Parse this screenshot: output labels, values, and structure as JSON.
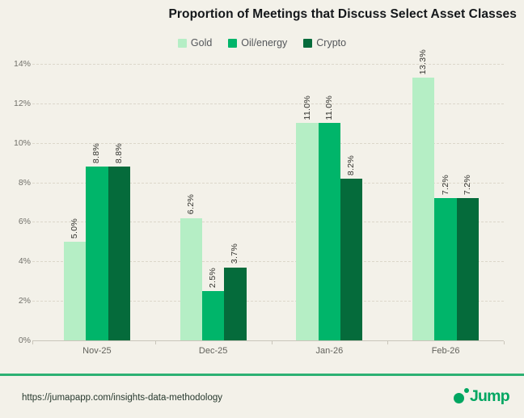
{
  "title": "Proportion of Meetings that Discuss Select Asset Classes",
  "footer": {
    "url": "https://jumapapp.com/insights-data-methodology",
    "brand": "Jump",
    "logo_icon": "dot-and-small-dot-icon"
  },
  "colors": {
    "background": "#f3f1e9",
    "accent_line": "#2cb173",
    "brand_green": "#00a661",
    "gridline": "#dcd7ca",
    "gold": "#b5eec5",
    "oil_energy": "#00b56a",
    "crypto": "#056b3b"
  },
  "chart_data": {
    "type": "bar",
    "title": "Proportion of Meetings that Discuss Select Asset Classes",
    "categories": [
      "Nov-25",
      "Dec-25",
      "Jan-26",
      "Feb-26"
    ],
    "series": [
      {
        "name": "Gold",
        "color": "#b5eec5",
        "values": [
          5.0,
          6.2,
          11.0,
          13.3
        ],
        "labels": [
          "5.0%",
          "6.2%",
          "11.0%",
          "13.3%"
        ]
      },
      {
        "name": "Oil/energy",
        "color": "#00b56a",
        "values": [
          8.8,
          2.5,
          11.0,
          7.2
        ],
        "labels": [
          "8.8%",
          "2.5%",
          "11.0%",
          "7.2%"
        ]
      },
      {
        "name": "Crypto",
        "color": "#056b3b",
        "values": [
          8.8,
          3.7,
          8.2,
          7.2
        ],
        "labels": [
          "8.8%",
          "3.7%",
          "8.2%",
          "7.2%"
        ]
      }
    ],
    "y_ticks": [
      "0%",
      "2%",
      "4%",
      "6%",
      "8%",
      "10%",
      "12%",
      "14%"
    ],
    "ylim": [
      0,
      14
    ],
    "xlabel": "",
    "ylabel": "",
    "grid": "horizontal-dashed",
    "legend_position": "top-center",
    "value_label_rotation": 90
  }
}
